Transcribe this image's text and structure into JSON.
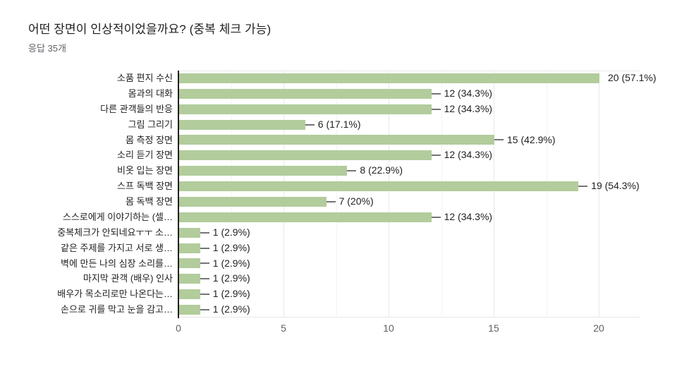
{
  "header": {
    "title": "어떤 장면이 인상적이었을까요? (중복 체크 가능)",
    "subtitle": "응답 35개"
  },
  "chart_data": {
    "type": "bar",
    "orientation": "horizontal",
    "title": "어떤 장면이 인상적이었을까요? (중복 체크 가능)",
    "subtitle": "응답 35개",
    "total_responses": 35,
    "categories": [
      "소품 편지 수신",
      "몸과의 대화",
      "다른 관객들의 반응",
      "그림 그리기",
      "몸 측정 장면",
      "소리 듣기 장면",
      "비옷 입는 장면",
      "스프 독백 장면",
      "몸 독백 장면",
      "스스로에게 이야기하는 (셀…",
      "중복체크가 안되네요ㅜㅜ 소…",
      "같은 주제를 가지고 서로 생…",
      "벽에 만든 나의 심장 소리를…",
      "마지막 관객 (배우) 인사",
      "배우가 목소리로만 나온다는…",
      "손으로 귀를 막고 눈을 감고…"
    ],
    "values": [
      20,
      12,
      12,
      6,
      15,
      12,
      8,
      19,
      7,
      12,
      1,
      1,
      1,
      1,
      1,
      1
    ],
    "value_labels": [
      "20 (57.1%)",
      "12 (34.3%)",
      "12 (34.3%)",
      "6 (17.1%)",
      "15 (42.9%)",
      "12 (34.3%)",
      "8 (22.9%)",
      "19 (54.3%)",
      "7 (20%)",
      "12 (34.3%)",
      "1 (2.9%)",
      "1 (2.9%)",
      "1 (2.9%)",
      "1 (2.9%)",
      "1 (2.9%)",
      "1 (2.9%)"
    ],
    "xlabel": "",
    "ylabel": "",
    "xlim": [
      0,
      20
    ],
    "x_ticks": [
      0,
      5,
      10,
      15,
      20
    ],
    "x_tick_labels": [
      "0",
      "5",
      "10",
      "15",
      "20"
    ],
    "x_minor_ticks": [
      2.5,
      7.5,
      12.5,
      17.5
    ],
    "grid": true,
    "legend": "none",
    "colors": {
      "bar": "#b2cc9c",
      "axis_line": "#212121",
      "gridline_major": "#e8e8e8",
      "gridline_minor": "#f3f3f3",
      "stem": "#757575",
      "category_label": "#212121",
      "value_label": "#212121",
      "tick_label": "#616161"
    }
  }
}
